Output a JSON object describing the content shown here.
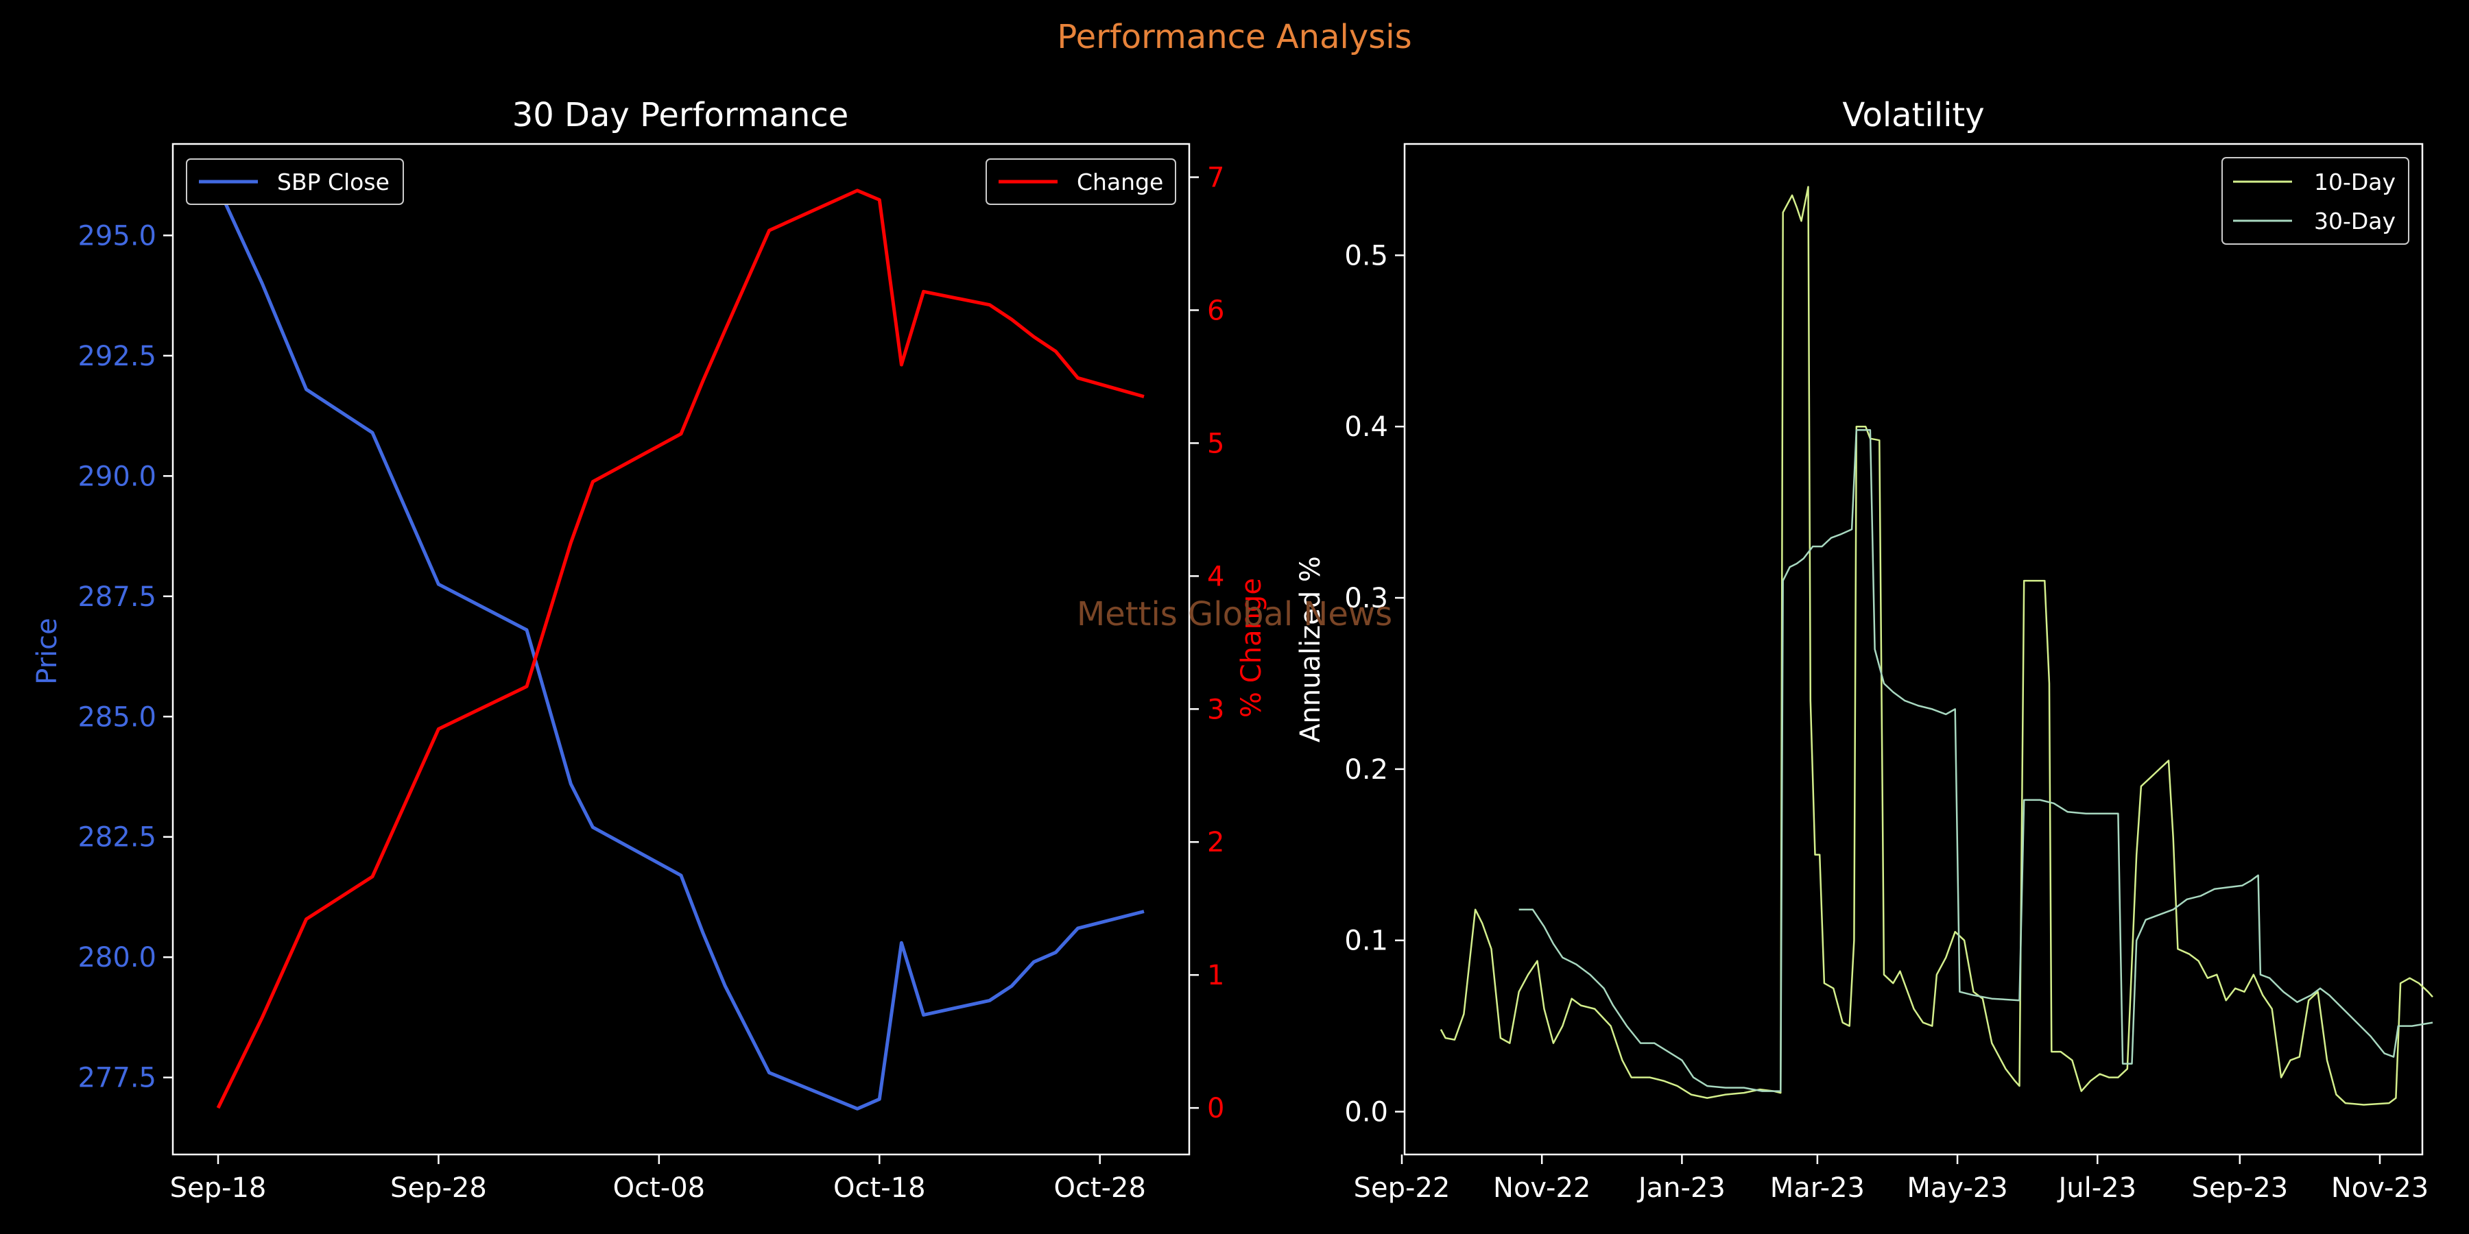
{
  "figure": {
    "suptitle": "Performance Analysis",
    "watermark": "Mettis Global News",
    "background": "#000000",
    "suptitle_color": "#e8833a",
    "watermark_color": "#7a4526"
  },
  "chart_data": [
    {
      "type": "line",
      "title": "30 Day Performance",
      "xlabel": "",
      "ylabel": "Price",
      "y2label": "% Change",
      "x_tick_labels": [
        "Sep-18",
        "Sep-28",
        "Oct-08",
        "Oct-18",
        "Oct-28"
      ],
      "y_ticks": [
        277.5,
        280.0,
        282.5,
        285.0,
        287.5,
        290.0,
        292.5,
        295.0
      ],
      "y_tick_labels": [
        "277.5",
        "280.0",
        "282.5",
        "285.0",
        "287.5",
        "290.0",
        "292.5",
        "295.0"
      ],
      "ylim": [
        275.9,
        296.9
      ],
      "y2_ticks": [
        0,
        1,
        2,
        3,
        4,
        5,
        6,
        7
      ],
      "y2_tick_labels": [
        "0",
        "1",
        "2",
        "3",
        "4",
        "5",
        "6",
        "7"
      ],
      "y2lim": [
        -0.35,
        7.25
      ],
      "legend_placement": "upper-left (price), upper-right (change)",
      "grid": false,
      "series": [
        {
          "name": "SBP Close",
          "axis": "left",
          "color": "#4169e1",
          "x": [
            "2023-09-18",
            "2023-09-20",
            "2023-09-22",
            "2023-09-25",
            "2023-09-28",
            "2023-10-02",
            "2023-10-04",
            "2023-10-05",
            "2023-10-09",
            "2023-10-10",
            "2023-10-11",
            "2023-10-13",
            "2023-10-17",
            "2023-10-18",
            "2023-10-19",
            "2023-10-20",
            "2023-10-23",
            "2023-10-24",
            "2023-10-25",
            "2023-10-26",
            "2023-10-27",
            "2023-10-30"
          ],
          "values": [
            296.0,
            294.0,
            291.8,
            290.9,
            287.75,
            286.8,
            283.6,
            282.7,
            281.7,
            280.5,
            279.4,
            277.6,
            276.85,
            277.05,
            280.3,
            278.8,
            279.1,
            279.4,
            279.9,
            280.1,
            280.6,
            280.95
          ]
        },
        {
          "name": "Change",
          "axis": "right",
          "color": "#ff0000",
          "x": [
            "2023-09-18",
            "2023-09-20",
            "2023-09-22",
            "2023-09-25",
            "2023-09-28",
            "2023-10-02",
            "2023-10-04",
            "2023-10-05",
            "2023-10-09",
            "2023-10-10",
            "2023-10-11",
            "2023-10-13",
            "2023-10-17",
            "2023-10-18",
            "2023-10-19",
            "2023-10-20",
            "2023-10-23",
            "2023-10-24",
            "2023-10-25",
            "2023-10-26",
            "2023-10-27",
            "2023-10-30"
          ],
          "values": [
            0.0,
            0.68,
            1.42,
            1.74,
            2.85,
            3.17,
            4.25,
            4.71,
            5.07,
            5.47,
            5.85,
            6.6,
            6.9,
            6.83,
            5.59,
            6.14,
            6.04,
            5.93,
            5.8,
            5.69,
            5.49,
            5.35
          ]
        }
      ]
    },
    {
      "type": "line",
      "title": "Volatility",
      "xlabel": "",
      "ylabel": "Annualized %",
      "x_tick_labels": [
        "Sep-22",
        "Nov-22",
        "Jan-23",
        "Mar-23",
        "May-23",
        "Jul-23",
        "Sep-23",
        "Nov-23"
      ],
      "y_ticks": [
        0.0,
        0.1,
        0.2,
        0.3,
        0.4,
        0.5
      ],
      "y_tick_labels": [
        "0.0",
        "0.1",
        "0.2",
        "0.3",
        "0.4",
        "0.5"
      ],
      "ylim": [
        -0.025,
        0.565
      ],
      "legend_placement": "upper-right",
      "grid": false,
      "series": [
        {
          "name": "10-Day",
          "color": "#d4ef8c",
          "points": [
            [
              "2022-09-18",
              0.048
            ],
            [
              "2022-09-20",
              0.043
            ],
            [
              "2022-09-24",
              0.042
            ],
            [
              "2022-09-28",
              0.057
            ],
            [
              "2022-10-03",
              0.118
            ],
            [
              "2022-10-06",
              0.11
            ],
            [
              "2022-10-10",
              0.095
            ],
            [
              "2022-10-14",
              0.043
            ],
            [
              "2022-10-18",
              0.04
            ],
            [
              "2022-10-22",
              0.07
            ],
            [
              "2022-10-26",
              0.08
            ],
            [
              "2022-10-30",
              0.088
            ],
            [
              "2022-11-02",
              0.06
            ],
            [
              "2022-11-06",
              0.04
            ],
            [
              "2022-11-10",
              0.05
            ],
            [
              "2022-11-14",
              0.066
            ],
            [
              "2022-11-18",
              0.062
            ],
            [
              "2022-11-24",
              0.06
            ],
            [
              "2022-12-01",
              0.05
            ],
            [
              "2022-12-06",
              0.03
            ],
            [
              "2022-12-10",
              0.02
            ],
            [
              "2022-12-18",
              0.02
            ],
            [
              "2022-12-24",
              0.018
            ],
            [
              "2022-12-30",
              0.015
            ],
            [
              "2023-01-05",
              0.01
            ],
            [
              "2023-01-12",
              0.008
            ],
            [
              "2023-01-20",
              0.01
            ],
            [
              "2023-01-28",
              0.011
            ],
            [
              "2023-02-04",
              0.013
            ],
            [
              "2023-02-10",
              0.012
            ],
            [
              "2023-02-13",
              0.011
            ],
            [
              "2023-02-14",
              0.525
            ],
            [
              "2023-02-16",
              0.53
            ],
            [
              "2023-02-18",
              0.535
            ],
            [
              "2023-02-20",
              0.528
            ],
            [
              "2023-02-22",
              0.52
            ],
            [
              "2023-02-25",
              0.54
            ],
            [
              "2023-02-26",
              0.24
            ],
            [
              "2023-02-28",
              0.15
            ],
            [
              "2023-03-02",
              0.15
            ],
            [
              "2023-03-04",
              0.075
            ],
            [
              "2023-03-08",
              0.072
            ],
            [
              "2023-03-12",
              0.052
            ],
            [
              "2023-03-15",
              0.05
            ],
            [
              "2023-03-17",
              0.1
            ],
            [
              "2023-03-18",
              0.4
            ],
            [
              "2023-03-22",
              0.4
            ],
            [
              "2023-03-24",
              0.393
            ],
            [
              "2023-03-28",
              0.392
            ],
            [
              "2023-03-30",
              0.08
            ],
            [
              "2023-04-03",
              0.075
            ],
            [
              "2023-04-06",
              0.082
            ],
            [
              "2023-04-12",
              0.06
            ],
            [
              "2023-04-16",
              0.052
            ],
            [
              "2023-04-20",
              0.05
            ],
            [
              "2023-04-22",
              0.08
            ],
            [
              "2023-04-26",
              0.09
            ],
            [
              "2023-04-30",
              0.105
            ],
            [
              "2023-05-04",
              0.1
            ],
            [
              "2023-05-08",
              0.07
            ],
            [
              "2023-05-12",
              0.066
            ],
            [
              "2023-05-16",
              0.04
            ],
            [
              "2023-05-22",
              0.025
            ],
            [
              "2023-05-26",
              0.018
            ],
            [
              "2023-05-28",
              0.015
            ],
            [
              "2023-05-30",
              0.31
            ],
            [
              "2023-06-03",
              0.31
            ],
            [
              "2023-06-08",
              0.31
            ],
            [
              "2023-06-10",
              0.25
            ],
            [
              "2023-06-11",
              0.035
            ],
            [
              "2023-06-15",
              0.035
            ],
            [
              "2023-06-20",
              0.03
            ],
            [
              "2023-06-24",
              0.012
            ],
            [
              "2023-06-28",
              0.018
            ],
            [
              "2023-07-02",
              0.022
            ],
            [
              "2023-07-06",
              0.02
            ],
            [
              "2023-07-10",
              0.02
            ],
            [
              "2023-07-14",
              0.025
            ],
            [
              "2023-07-18",
              0.15
            ],
            [
              "2023-07-20",
              0.19
            ],
            [
              "2023-07-24",
              0.195
            ],
            [
              "2023-07-28",
              0.2
            ],
            [
              "2023-08-01",
              0.205
            ],
            [
              "2023-08-03",
              0.16
            ],
            [
              "2023-08-05",
              0.095
            ],
            [
              "2023-08-10",
              0.092
            ],
            [
              "2023-08-14",
              0.088
            ],
            [
              "2023-08-18",
              0.078
            ],
            [
              "2023-08-22",
              0.08
            ],
            [
              "2023-08-26",
              0.065
            ],
            [
              "2023-08-30",
              0.072
            ],
            [
              "2023-09-03",
              0.07
            ],
            [
              "2023-09-07",
              0.08
            ],
            [
              "2023-09-11",
              0.068
            ],
            [
              "2023-09-15",
              0.06
            ],
            [
              "2023-09-19",
              0.02
            ],
            [
              "2023-09-23",
              0.03
            ],
            [
              "2023-09-27",
              0.032
            ],
            [
              "2023-10-01",
              0.065
            ],
            [
              "2023-10-05",
              0.07
            ],
            [
              "2023-10-09",
              0.03
            ],
            [
              "2023-10-13",
              0.01
            ],
            [
              "2023-10-17",
              0.005
            ],
            [
              "2023-10-25",
              0.004
            ],
            [
              "2023-11-05",
              0.005
            ],
            [
              "2023-11-08",
              0.008
            ],
            [
              "2023-11-10",
              0.075
            ],
            [
              "2023-11-14",
              0.078
            ],
            [
              "2023-11-18",
              0.075
            ],
            [
              "2023-11-22",
              0.07
            ],
            [
              "2023-11-24",
              0.067
            ]
          ]
        },
        {
          "name": "30-Day",
          "color": "#a8d8c0",
          "points": [
            [
              "2022-10-22",
              0.118
            ],
            [
              "2022-10-28",
              0.118
            ],
            [
              "2022-11-02",
              0.108
            ],
            [
              "2022-11-06",
              0.098
            ],
            [
              "2022-11-10",
              0.09
            ],
            [
              "2022-11-16",
              0.086
            ],
            [
              "2022-11-22",
              0.08
            ],
            [
              "2022-11-28",
              0.072
            ],
            [
              "2022-12-02",
              0.062
            ],
            [
              "2022-12-08",
              0.05
            ],
            [
              "2022-12-14",
              0.04
            ],
            [
              "2022-12-20",
              0.04
            ],
            [
              "2022-12-26",
              0.035
            ],
            [
              "2023-01-01",
              0.03
            ],
            [
              "2023-01-06",
              0.02
            ],
            [
              "2023-01-12",
              0.015
            ],
            [
              "2023-01-20",
              0.014
            ],
            [
              "2023-01-28",
              0.014
            ],
            [
              "2023-02-05",
              0.012
            ],
            [
              "2023-02-13",
              0.012
            ],
            [
              "2023-02-14",
              0.31
            ],
            [
              "2023-02-17",
              0.318
            ],
            [
              "2023-02-20",
              0.32
            ],
            [
              "2023-02-23",
              0.323
            ],
            [
              "2023-02-27",
              0.33
            ],
            [
              "2023-03-03",
              0.33
            ],
            [
              "2023-03-07",
              0.335
            ],
            [
              "2023-03-11",
              0.337
            ],
            [
              "2023-03-16",
              0.34
            ],
            [
              "2023-03-18",
              0.398
            ],
            [
              "2023-03-24",
              0.398
            ],
            [
              "2023-03-26",
              0.27
            ],
            [
              "2023-03-30",
              0.25
            ],
            [
              "2023-04-03",
              0.245
            ],
            [
              "2023-04-08",
              0.24
            ],
            [
              "2023-04-14",
              0.237
            ],
            [
              "2023-04-20",
              0.235
            ],
            [
              "2023-04-26",
              0.232
            ],
            [
              "2023-04-30",
              0.235
            ],
            [
              "2023-05-02",
              0.07
            ],
            [
              "2023-05-08",
              0.068
            ],
            [
              "2023-05-16",
              0.066
            ],
            [
              "2023-05-28",
              0.065
            ],
            [
              "2023-05-30",
              0.182
            ],
            [
              "2023-06-06",
              0.182
            ],
            [
              "2023-06-12",
              0.18
            ],
            [
              "2023-06-18",
              0.175
            ],
            [
              "2023-06-26",
              0.174
            ],
            [
              "2023-07-04",
              0.174
            ],
            [
              "2023-07-10",
              0.174
            ],
            [
              "2023-07-12",
              0.028
            ],
            [
              "2023-07-16",
              0.028
            ],
            [
              "2023-07-18",
              0.1
            ],
            [
              "2023-07-22",
              0.112
            ],
            [
              "2023-07-28",
              0.115
            ],
            [
              "2023-08-03",
              0.118
            ],
            [
              "2023-08-09",
              0.124
            ],
            [
              "2023-08-15",
              0.126
            ],
            [
              "2023-08-21",
              0.13
            ],
            [
              "2023-08-27",
              0.131
            ],
            [
              "2023-09-02",
              0.132
            ],
            [
              "2023-09-06",
              0.135
            ],
            [
              "2023-09-09",
              0.138
            ],
            [
              "2023-09-10",
              0.08
            ],
            [
              "2023-09-14",
              0.078
            ],
            [
              "2023-09-20",
              0.07
            ],
            [
              "2023-09-26",
              0.064
            ],
            [
              "2023-10-02",
              0.068
            ],
            [
              "2023-10-06",
              0.072
            ],
            [
              "2023-10-10",
              0.068
            ],
            [
              "2023-10-16",
              0.06
            ],
            [
              "2023-10-22",
              0.052
            ],
            [
              "2023-10-28",
              0.044
            ],
            [
              "2023-11-03",
              0.034
            ],
            [
              "2023-11-07",
              0.032
            ],
            [
              "2023-11-09",
              0.05
            ],
            [
              "2023-11-15",
              0.05
            ],
            [
              "2023-11-24",
              0.052
            ]
          ]
        }
      ]
    }
  ]
}
